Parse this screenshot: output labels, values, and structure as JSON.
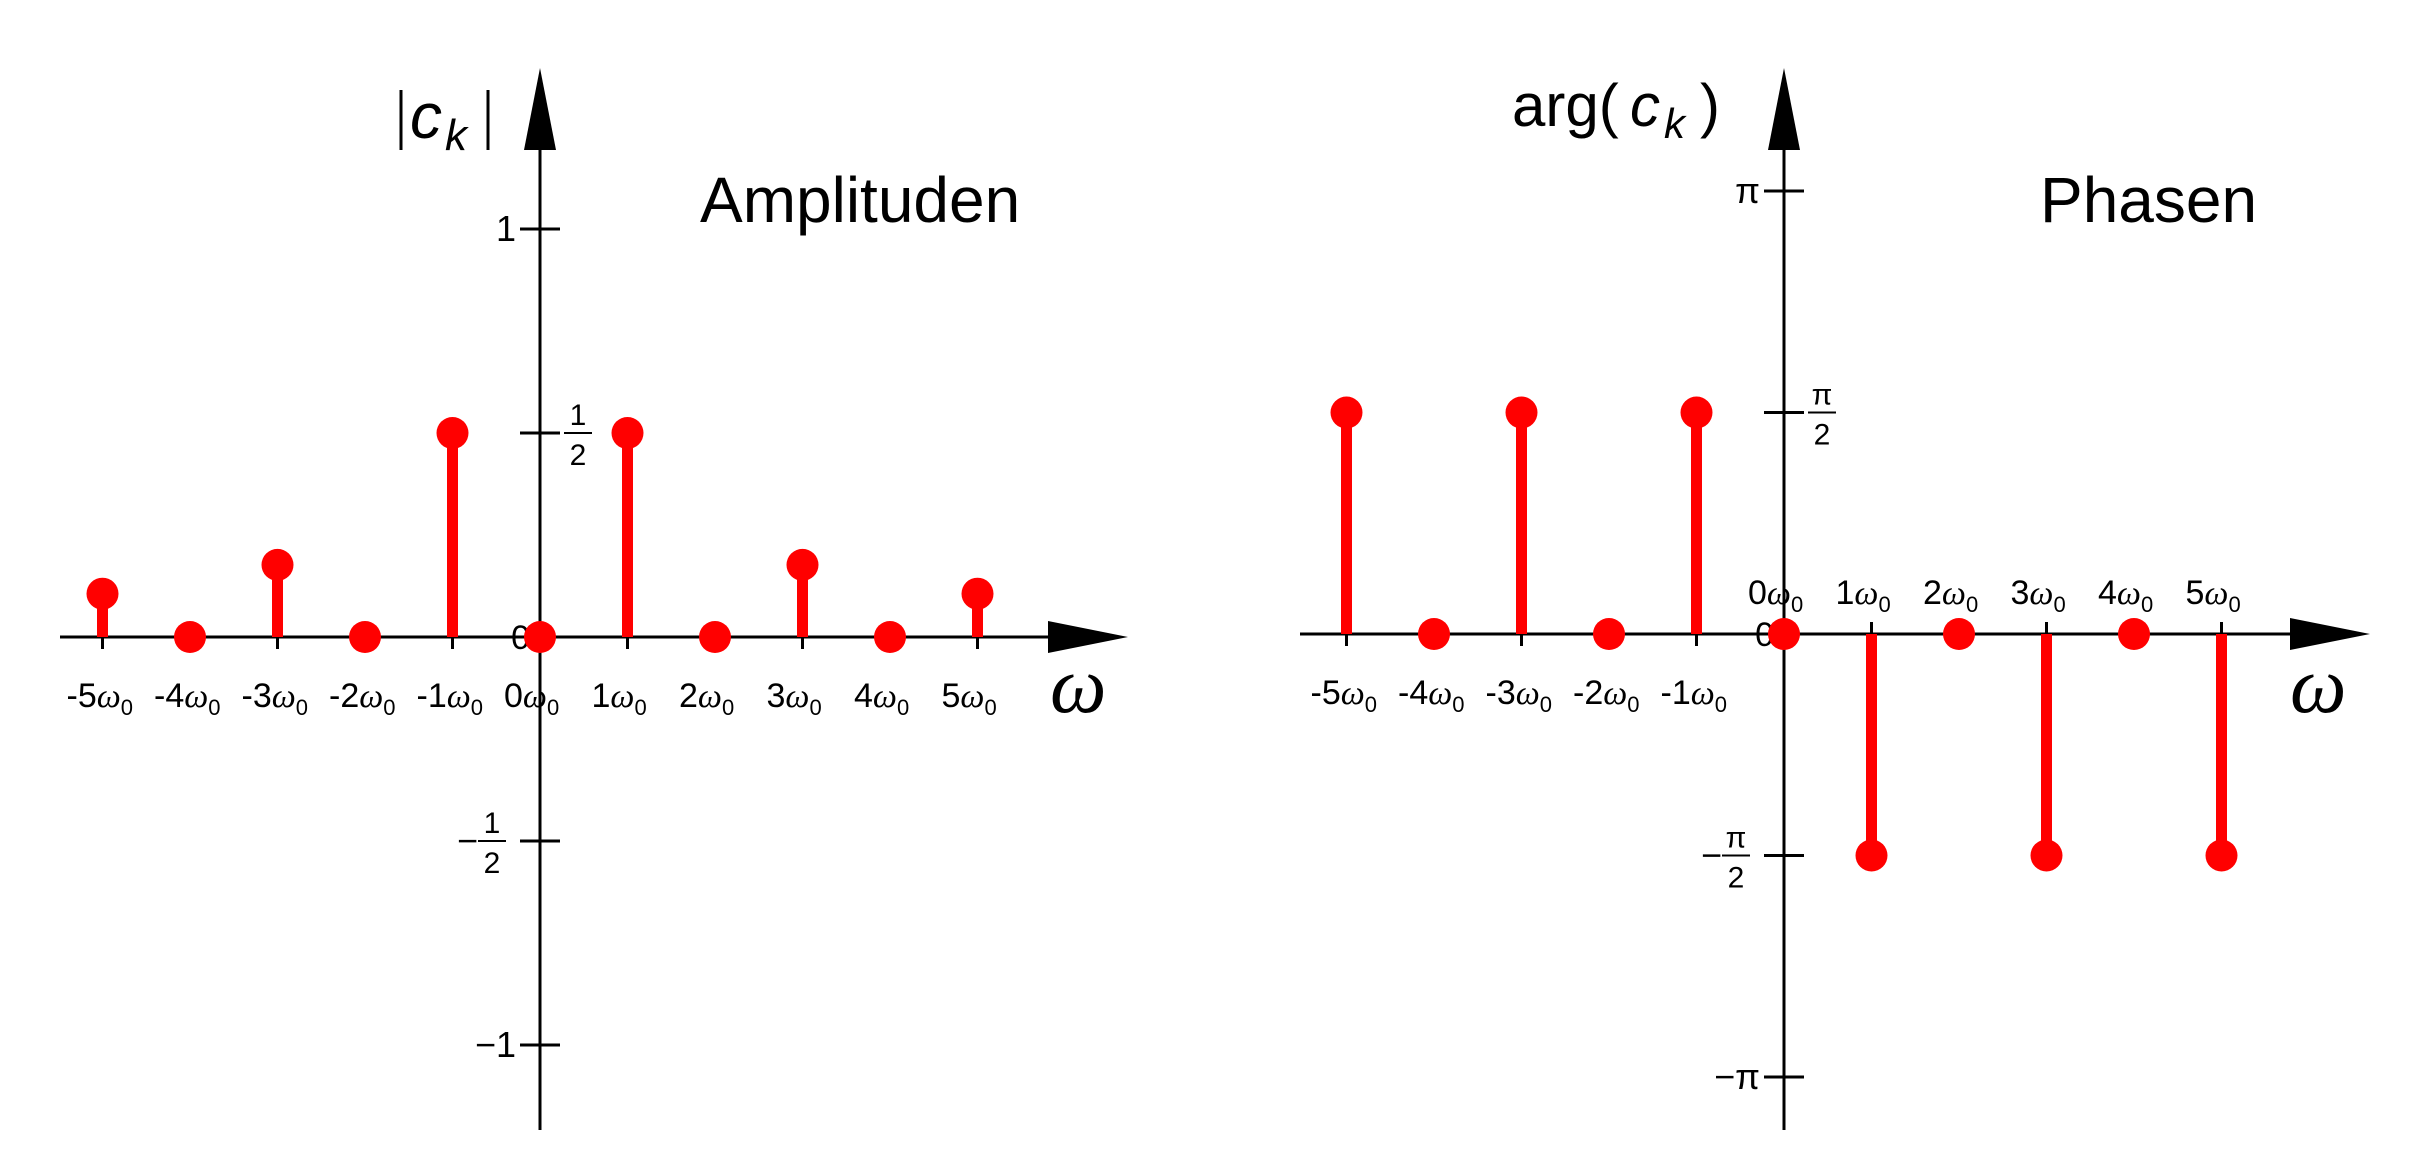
{
  "chart_data": [
    {
      "type": "stem",
      "title": "Amplituden",
      "ylabel": "|c_k|",
      "ylabel_base": "c",
      "ylabel_sub": "k",
      "xlabel": "ω",
      "x": [
        -5,
        -4,
        -3,
        -2,
        -1,
        0,
        1,
        2,
        3,
        4,
        5
      ],
      "x_tick_labels": [
        {
          "num": "-5",
          "sym": "ω",
          "sub": "0"
        },
        {
          "num": "-4",
          "sym": "ω",
          "sub": "0"
        },
        {
          "num": "-3",
          "sym": "ω",
          "sub": "0"
        },
        {
          "num": "-2",
          "sym": "ω",
          "sub": "0"
        },
        {
          "num": "-1",
          "sym": "ω",
          "sub": "0"
        },
        {
          "num": "0",
          "sym": "ω",
          "sub": "0"
        },
        {
          "num": "1",
          "sym": "ω",
          "sub": "0"
        },
        {
          "num": "2",
          "sym": "ω",
          "sub": "0"
        },
        {
          "num": "3",
          "sym": "ω",
          "sub": "0"
        },
        {
          "num": "4",
          "sym": "ω",
          "sub": "0"
        },
        {
          "num": "5",
          "sym": "ω",
          "sub": "0"
        }
      ],
      "values": [
        0.1061,
        0,
        0.1768,
        0,
        0.5,
        0,
        0.5,
        0,
        0.1768,
        0,
        0.1061
      ],
      "y_ticks": [
        {
          "value": 1,
          "label": "1"
        },
        {
          "value": 0.5,
          "num": "1",
          "den": "2"
        },
        {
          "value": 0,
          "label": "0"
        },
        {
          "value": -0.5,
          "sign": "−",
          "num": "1",
          "den": "2"
        },
        {
          "value": -1,
          "label": "−1"
        }
      ],
      "ylim": [
        -1.2,
        1.4
      ],
      "color": "#ff0000"
    },
    {
      "type": "stem",
      "title": "Phasen",
      "ylabel": "arg(c_k)",
      "ylabel_prefix": "arg(",
      "ylabel_base": "c",
      "ylabel_sub": "k",
      "ylabel_suffix": ")",
      "xlabel": "ω",
      "x": [
        -5,
        -4,
        -3,
        -2,
        -1,
        0,
        1,
        2,
        3,
        4,
        5
      ],
      "x_tick_labels_below": [
        {
          "num": "-5",
          "sym": "ω",
          "sub": "0"
        },
        {
          "num": "-4",
          "sym": "ω",
          "sub": "0"
        },
        {
          "num": "-3",
          "sym": "ω",
          "sub": "0"
        },
        {
          "num": "-2",
          "sym": "ω",
          "sub": "0"
        },
        {
          "num": "-1",
          "sym": "ω",
          "sub": "0"
        }
      ],
      "x_tick_labels_above": [
        {
          "num": "0",
          "sym": "ω",
          "sub": "0"
        },
        {
          "num": "1",
          "sym": "ω",
          "sub": "0"
        },
        {
          "num": "2",
          "sym": "ω",
          "sub": "0"
        },
        {
          "num": "3",
          "sym": "ω",
          "sub": "0"
        },
        {
          "num": "4",
          "sym": "ω",
          "sub": "0"
        },
        {
          "num": "5",
          "sym": "ω",
          "sub": "0"
        }
      ],
      "values": [
        1.5708,
        0,
        1.5708,
        0,
        1.5708,
        0,
        -1.5708,
        0,
        -1.5708,
        0,
        -1.5708
      ],
      "y_ticks": [
        {
          "value": 3.1416,
          "label": "π"
        },
        {
          "value": 1.5708,
          "num": "π",
          "den": "2"
        },
        {
          "value": 0,
          "label": "0"
        },
        {
          "value": -1.5708,
          "sign": "−",
          "num": "π",
          "den": "2"
        },
        {
          "value": -3.1416,
          "label": "−π"
        }
      ],
      "ylim": [
        -3.5,
        3.7
      ],
      "color": "#ff0000"
    }
  ]
}
